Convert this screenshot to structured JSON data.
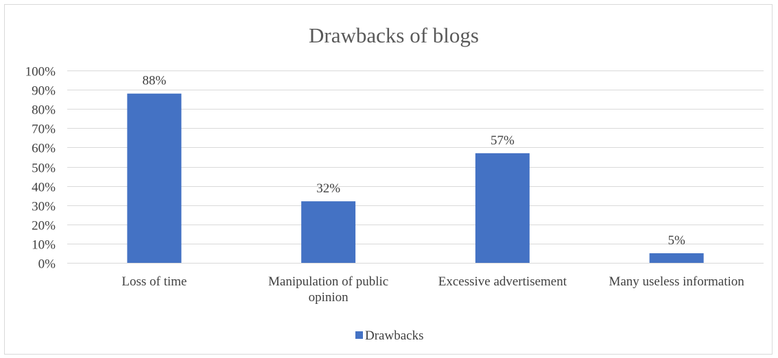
{
  "chart_data": {
    "type": "bar",
    "title": "Drawbacks of blogs",
    "categories": [
      [
        "Loss of time"
      ],
      [
        "Manipulation of public",
        "opinion"
      ],
      [
        "Excessive advertisement"
      ],
      [
        "Many useless information"
      ]
    ],
    "series": [
      {
        "name": "Drawbacks",
        "values": [
          88,
          32,
          57,
          5
        ],
        "data_labels": [
          "88%",
          "32%",
          "57%",
          "5%"
        ],
        "color": "#4472c4"
      }
    ],
    "ylim": [
      0,
      100
    ],
    "y_ticks": [
      "0%",
      "10%",
      "20%",
      "30%",
      "40%",
      "50%",
      "60%",
      "70%",
      "80%",
      "90%",
      "100%"
    ],
    "grid": true,
    "legend": "bottom"
  }
}
